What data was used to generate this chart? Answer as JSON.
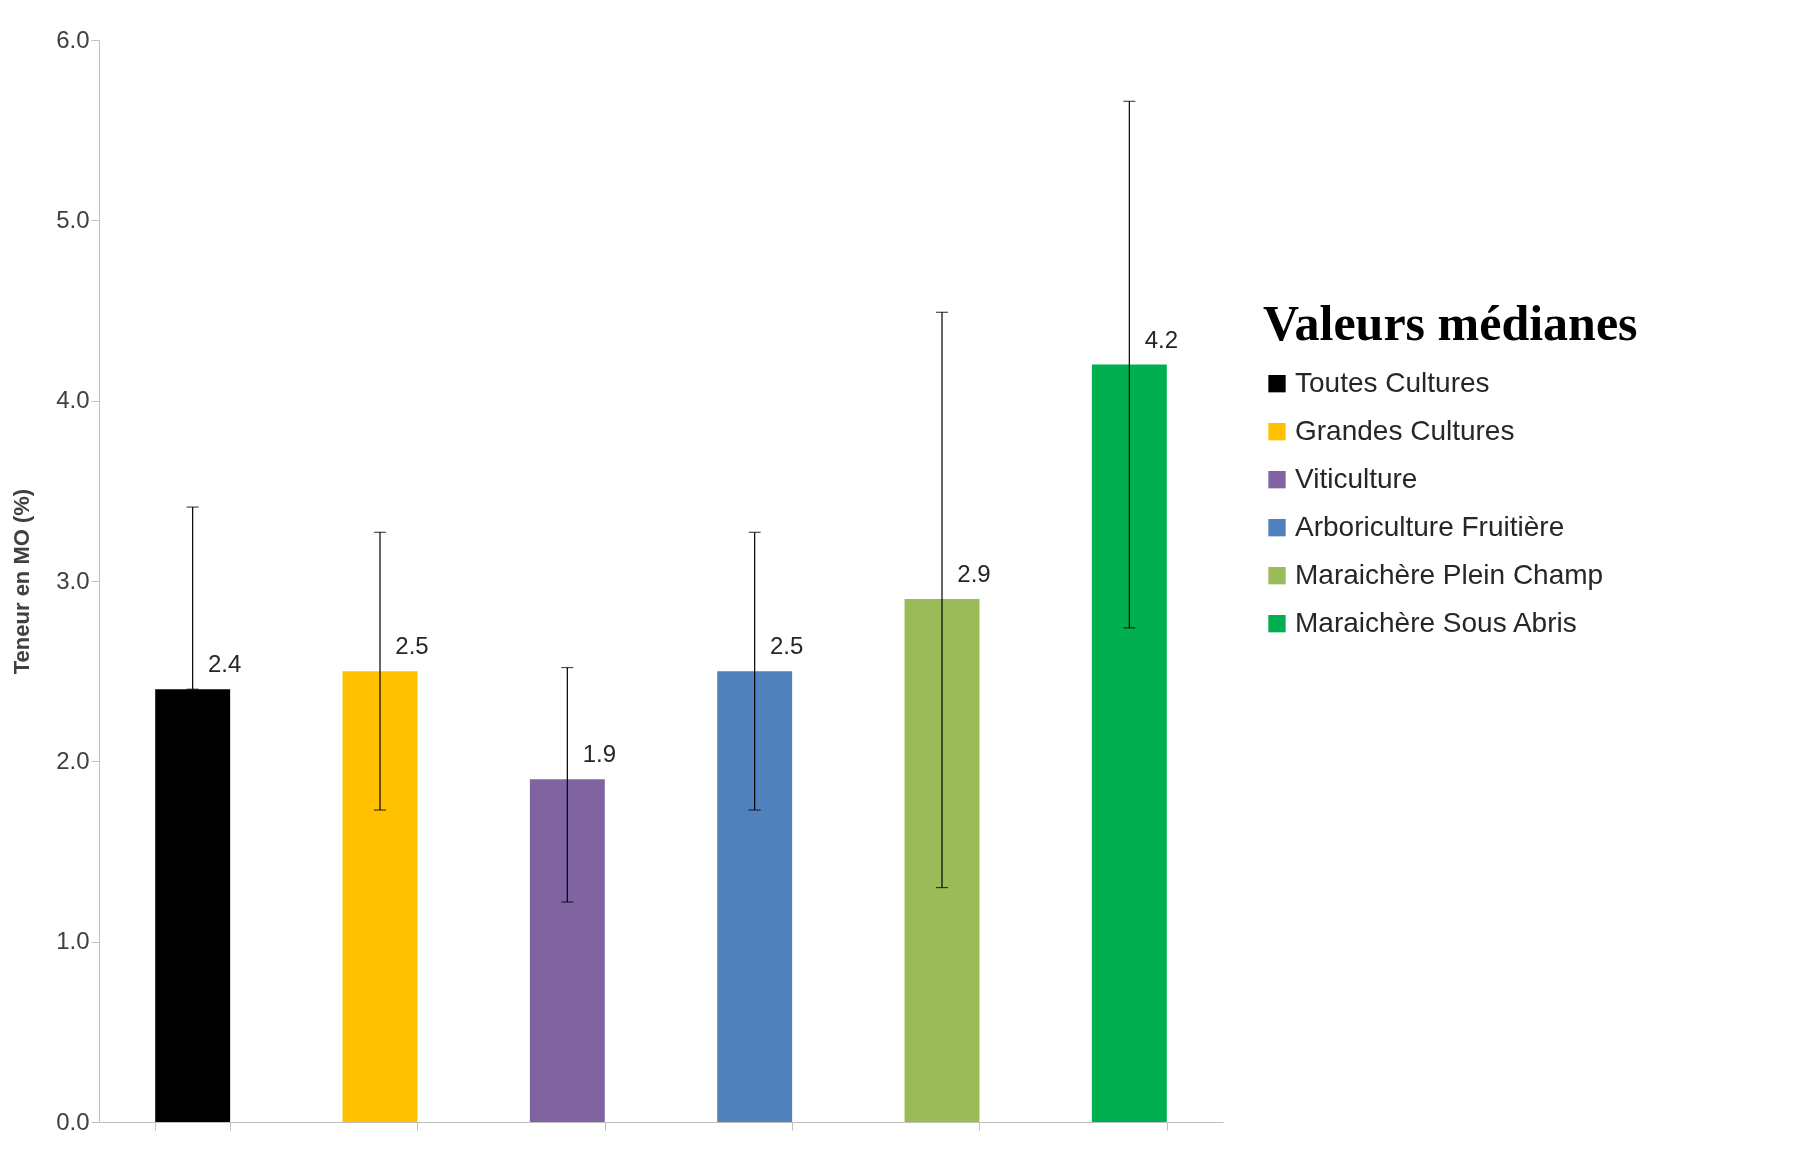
{
  "chart_data": {
    "type": "bar",
    "ylabel": "Teneur en MO (%)",
    "legend_title": "Valeurs médianes",
    "categories": [
      null,
      null,
      null,
      null,
      null,
      null
    ],
    "series": [
      {
        "name": "Toutes Cultures",
        "color": "#000000",
        "values": [
          2.4,
          null,
          null,
          null,
          null,
          null
        ],
        "errors": [
          [
            2.4,
            3.41
          ],
          null,
          null,
          null,
          null,
          null
        ]
      },
      {
        "name": "Grandes Cultures",
        "color": "#ffc000",
        "values": [
          null,
          2.5,
          null,
          null,
          null,
          null
        ],
        "errors": [
          null,
          [
            1.73,
            3.27
          ],
          null,
          null,
          null,
          null
        ]
      },
      {
        "name": "Viticulture",
        "color": "#8064a2",
        "values": [
          null,
          null,
          1.9,
          null,
          null,
          null
        ],
        "errors": [
          null,
          null,
          [
            1.22,
            2.52
          ],
          null,
          null,
          null
        ]
      },
      {
        "name": "Arboriculture Fruitière",
        "color": "#4f81bd",
        "values": [
          null,
          null,
          null,
          2.5,
          null,
          null
        ],
        "errors": [
          null,
          null,
          null,
          [
            1.73,
            3.27
          ],
          null,
          null
        ]
      },
      {
        "name": "Maraichère Plein Champ",
        "color": "#9bbb59",
        "values": [
          null,
          null,
          null,
          null,
          2.9,
          null
        ],
        "errors": [
          null,
          null,
          null,
          null,
          [
            1.3,
            4.49
          ],
          null
        ]
      },
      {
        "name": "Maraichère Sous Abris",
        "color": "#00b050",
        "values": [
          null,
          null,
          null,
          null,
          null,
          4.2
        ],
        "errors": [
          null,
          null,
          null,
          null,
          null,
          [
            2.74,
            5.66
          ]
        ]
      }
    ],
    "data_labels": true,
    "ylim": [
      0,
      6
    ],
    "yticks": [
      {
        "value": 0,
        "label": "0.0"
      },
      {
        "value": 1,
        "label": "1.0"
      },
      {
        "value": 2,
        "label": "2.0"
      },
      {
        "value": 3,
        "label": "3.0"
      },
      {
        "value": 4,
        "label": "4.0"
      },
      {
        "value": 5,
        "label": "5.0"
      },
      {
        "value": 6,
        "label": "6.0"
      }
    ],
    "tick_labels": "y",
    "legend": "right",
    "grid": false
  }
}
